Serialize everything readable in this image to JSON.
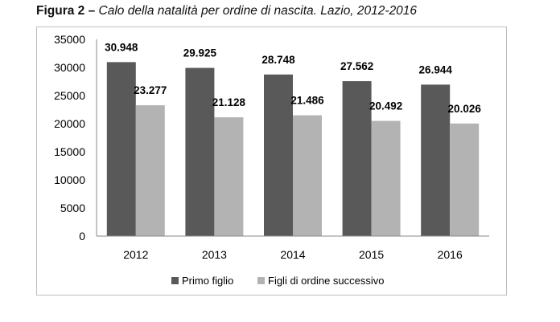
{
  "caption": {
    "label": "Figura 2 –",
    "text": "Calo della natalità per ordine di nascita. Lazio, 2012-2016"
  },
  "chart_data": {
    "type": "bar",
    "title": "",
    "xlabel": "",
    "ylabel": "",
    "categories": [
      "2012",
      "2013",
      "2014",
      "2015",
      "2016"
    ],
    "ylim": [
      0,
      35000
    ],
    "yticks": [
      0,
      5000,
      10000,
      15000,
      20000,
      25000,
      30000,
      35000
    ],
    "grid": false,
    "legend_position": "bottom",
    "series": [
      {
        "name": "Primo figlio",
        "color": "#595959",
        "values": [
          30948,
          29925,
          28748,
          27562,
          26944
        ],
        "labels": [
          "30.948",
          "29.925",
          "28.748",
          "27.562",
          "26.944"
        ]
      },
      {
        "name": "Figli di ordine successivo",
        "color": "#b3b3b3",
        "values": [
          23277,
          21128,
          21486,
          20492,
          20026
        ],
        "labels": [
          "23.277",
          "21.128",
          "21.486",
          "20.492",
          "20.026"
        ]
      }
    ]
  }
}
